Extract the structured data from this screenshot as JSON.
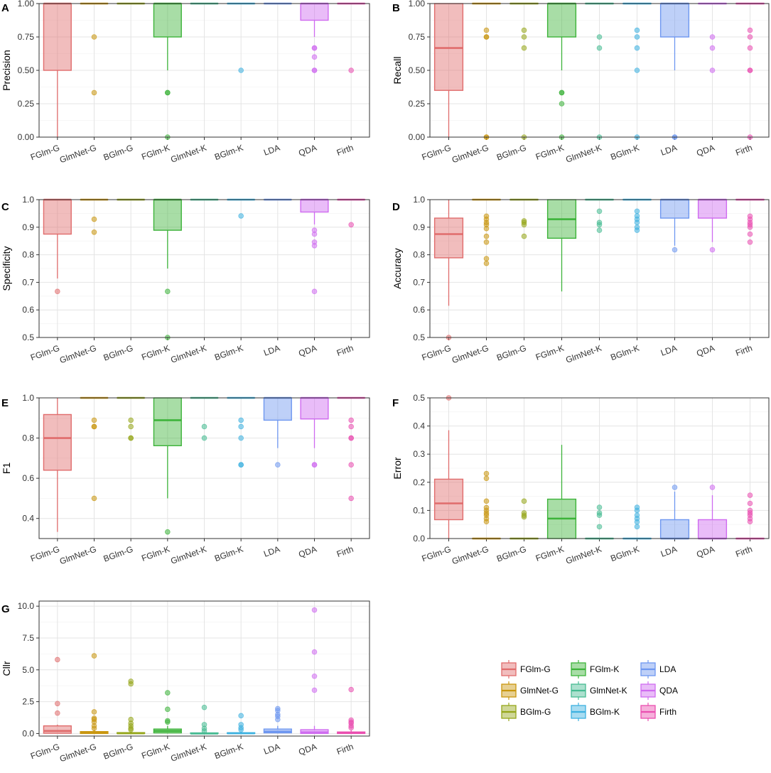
{
  "colors": {
    "FGlm-G": "#E06C6C",
    "GlmNet-G": "#C9960E",
    "BGlm-G": "#95A61A",
    "FGlm-K": "#3DB33A",
    "GlmNet-K": "#46BB92",
    "BGlm-K": "#3DB1E0",
    "LDA": "#6E97F0",
    "QDA": "#CF6BF0",
    "Firth": "#EA4FB0"
  },
  "legend": {
    "entries": [
      "FGlm-G",
      "FGlm-K",
      "LDA",
      "GlmNet-G",
      "GlmNet-K",
      "QDA",
      "BGlm-G",
      "BGlm-K",
      "Firth"
    ]
  },
  "chart_data": [
    {
      "type": "boxplot",
      "panel": "A",
      "ylabel": "Precision",
      "ylim": [
        0,
        1
      ],
      "yticks": [
        "0.00",
        "0.25",
        "0.50",
        "0.75",
        "1.00"
      ],
      "categories": [
        "FGlm-G",
        "GlmNet-G",
        "BGlm-G",
        "FGlm-K",
        "GlmNet-K",
        "BGlm-K",
        "LDA",
        "QDA",
        "Firth"
      ],
      "boxes": [
        {
          "q1": 0.5,
          "med": 1.0,
          "q3": 1.0,
          "lo": 0.0,
          "hi": 1.0,
          "out": []
        },
        {
          "q1": 1.0,
          "med": 1.0,
          "q3": 1.0,
          "lo": 1.0,
          "hi": 1.0,
          "out": [
            0.75,
            0.333
          ]
        },
        {
          "q1": 1.0,
          "med": 1.0,
          "q3": 1.0,
          "lo": 1.0,
          "hi": 1.0,
          "out": []
        },
        {
          "q1": 0.75,
          "med": 1.0,
          "q3": 1.0,
          "lo": 0.5,
          "hi": 1.0,
          "out": [
            0.333,
            0.333,
            0.0
          ]
        },
        {
          "q1": 1.0,
          "med": 1.0,
          "q3": 1.0,
          "lo": 1.0,
          "hi": 1.0,
          "out": []
        },
        {
          "q1": 1.0,
          "med": 1.0,
          "q3": 1.0,
          "lo": 1.0,
          "hi": 1.0,
          "out": [
            0.5
          ]
        },
        {
          "q1": 1.0,
          "med": 1.0,
          "q3": 1.0,
          "lo": 1.0,
          "hi": 1.0,
          "out": []
        },
        {
          "q1": 0.875,
          "med": 1.0,
          "q3": 1.0,
          "lo": 0.75,
          "hi": 1.0,
          "out": [
            0.667,
            0.667,
            0.6,
            0.5,
            0.5
          ]
        },
        {
          "q1": 1.0,
          "med": 1.0,
          "q3": 1.0,
          "lo": 1.0,
          "hi": 1.0,
          "out": [
            0.5
          ]
        }
      ]
    },
    {
      "type": "boxplot",
      "panel": "B",
      "ylabel": "Recall",
      "ylim": [
        0,
        1
      ],
      "yticks": [
        "0.00",
        "0.25",
        "0.50",
        "0.75",
        "1.00"
      ],
      "categories": [
        "FGlm-G",
        "GlmNet-G",
        "BGlm-G",
        "FGlm-K",
        "GlmNet-K",
        "BGlm-K",
        "LDA",
        "QDA",
        "Firth"
      ],
      "boxes": [
        {
          "q1": 0.35,
          "med": 0.667,
          "q3": 1.0,
          "lo": 0.0,
          "hi": 1.0,
          "out": []
        },
        {
          "q1": 1.0,
          "med": 1.0,
          "q3": 1.0,
          "lo": 1.0,
          "hi": 1.0,
          "out": [
            0.8,
            0.75,
            0.75,
            0.0,
            0.0
          ]
        },
        {
          "q1": 1.0,
          "med": 1.0,
          "q3": 1.0,
          "lo": 1.0,
          "hi": 1.0,
          "out": [
            0.8,
            0.75,
            0.667,
            0.0
          ]
        },
        {
          "q1": 0.75,
          "med": 1.0,
          "q3": 1.0,
          "lo": 0.5,
          "hi": 1.0,
          "out": [
            0.333,
            0.333,
            0.25,
            0.0
          ]
        },
        {
          "q1": 1.0,
          "med": 1.0,
          "q3": 1.0,
          "lo": 1.0,
          "hi": 1.0,
          "out": [
            0.75,
            0.667,
            0.0
          ]
        },
        {
          "q1": 1.0,
          "med": 1.0,
          "q3": 1.0,
          "lo": 1.0,
          "hi": 1.0,
          "out": [
            0.8,
            0.75,
            0.667,
            0.5,
            0.0
          ]
        },
        {
          "q1": 0.75,
          "med": 1.0,
          "q3": 1.0,
          "lo": 0.5,
          "hi": 1.0,
          "out": [
            0.0,
            0.0
          ]
        },
        {
          "q1": 1.0,
          "med": 1.0,
          "q3": 1.0,
          "lo": 1.0,
          "hi": 1.0,
          "out": [
            0.75,
            0.667,
            0.5
          ]
        },
        {
          "q1": 1.0,
          "med": 1.0,
          "q3": 1.0,
          "lo": 1.0,
          "hi": 1.0,
          "out": [
            0.8,
            0.75,
            0.667,
            0.5,
            0.5,
            0.0
          ]
        }
      ]
    },
    {
      "type": "boxplot",
      "panel": "C",
      "ylabel": "Specificity",
      "ylim": [
        0.5,
        1
      ],
      "yticks": [
        "0.5",
        "0.6",
        "0.7",
        "0.8",
        "0.9",
        "1.0"
      ],
      "categories": [
        "FGlm-G",
        "GlmNet-G",
        "BGlm-G",
        "FGlm-K",
        "GlmNet-K",
        "BGlm-K",
        "LDA",
        "QDA",
        "Firth"
      ],
      "boxes": [
        {
          "q1": 0.875,
          "med": 1.0,
          "q3": 1.0,
          "lo": 0.714,
          "hi": 1.0,
          "out": [
            0.667
          ]
        },
        {
          "q1": 1.0,
          "med": 1.0,
          "q3": 1.0,
          "lo": 1.0,
          "hi": 1.0,
          "out": [
            0.929,
            0.882
          ]
        },
        {
          "q1": 1.0,
          "med": 1.0,
          "q3": 1.0,
          "lo": 1.0,
          "hi": 1.0,
          "out": []
        },
        {
          "q1": 0.889,
          "med": 1.0,
          "q3": 1.0,
          "lo": 0.75,
          "hi": 1.0,
          "out": [
            0.667,
            0.5
          ]
        },
        {
          "q1": 1.0,
          "med": 1.0,
          "q3": 1.0,
          "lo": 1.0,
          "hi": 1.0,
          "out": []
        },
        {
          "q1": 1.0,
          "med": 1.0,
          "q3": 1.0,
          "lo": 1.0,
          "hi": 1.0,
          "out": [
            0.941
          ]
        },
        {
          "q1": 1.0,
          "med": 1.0,
          "q3": 1.0,
          "lo": 1.0,
          "hi": 1.0,
          "out": []
        },
        {
          "q1": 0.955,
          "med": 1.0,
          "q3": 1.0,
          "lo": 0.91,
          "hi": 1.0,
          "out": [
            0.889,
            0.875,
            0.846,
            0.833,
            0.667
          ]
        },
        {
          "q1": 1.0,
          "med": 1.0,
          "q3": 1.0,
          "lo": 1.0,
          "hi": 1.0,
          "out": [
            0.909
          ]
        }
      ]
    },
    {
      "type": "boxplot",
      "panel": "D",
      "ylabel": "Accuracy",
      "ylim": [
        0.5,
        1
      ],
      "yticks": [
        "0.5",
        "0.6",
        "0.7",
        "0.8",
        "0.9",
        "1.0"
      ],
      "categories": [
        "FGlm-G",
        "GlmNet-G",
        "BGlm-G",
        "FGlm-K",
        "GlmNet-K",
        "BGlm-K",
        "LDA",
        "QDA",
        "Firth"
      ],
      "boxes": [
        {
          "q1": 0.789,
          "med": 0.875,
          "q3": 0.933,
          "lo": 0.615,
          "hi": 1.0,
          "out": [
            0.5
          ]
        },
        {
          "q1": 1.0,
          "med": 1.0,
          "q3": 1.0,
          "lo": 1.0,
          "hi": 1.0,
          "out": [
            0.94,
            0.929,
            0.917,
            0.909,
            0.895,
            0.867,
            0.846,
            0.786,
            0.769
          ]
        },
        {
          "q1": 1.0,
          "med": 1.0,
          "q3": 1.0,
          "lo": 1.0,
          "hi": 1.0,
          "out": [
            0.923,
            0.917,
            0.909,
            0.867
          ]
        },
        {
          "q1": 0.86,
          "med": 0.929,
          "q3": 1.0,
          "lo": 0.667,
          "hi": 1.0,
          "out": []
        },
        {
          "q1": 1.0,
          "med": 1.0,
          "q3": 1.0,
          "lo": 1.0,
          "hi": 1.0,
          "out": [
            0.958,
            0.917,
            0.909,
            0.889
          ]
        },
        {
          "q1": 1.0,
          "med": 1.0,
          "q3": 1.0,
          "lo": 1.0,
          "hi": 1.0,
          "out": [
            0.958,
            0.941,
            0.929,
            0.917,
            0.9,
            0.889
          ]
        },
        {
          "q1": 0.933,
          "med": 1.0,
          "q3": 1.0,
          "lo": 0.833,
          "hi": 1.0,
          "out": [
            0.818
          ]
        },
        {
          "q1": 0.933,
          "med": 1.0,
          "q3": 1.0,
          "lo": 0.846,
          "hi": 1.0,
          "out": [
            0.818
          ]
        },
        {
          "q1": 1.0,
          "med": 1.0,
          "q3": 1.0,
          "lo": 1.0,
          "hi": 1.0,
          "out": [
            0.94,
            0.929,
            0.917,
            0.909,
            0.9,
            0.875,
            0.846
          ]
        }
      ]
    },
    {
      "type": "boxplot",
      "panel": "E",
      "ylabel": "F1",
      "ylim": [
        0.3,
        1
      ],
      "yticks": [
        "0.4",
        "0.6",
        "0.8",
        "1.0"
      ],
      "categories": [
        "FGlm-G",
        "GlmNet-G",
        "BGlm-G",
        "FGlm-K",
        "GlmNet-K",
        "BGlm-K",
        "LDA",
        "QDA",
        "Firth"
      ],
      "boxes": [
        {
          "q1": 0.64,
          "med": 0.8,
          "q3": 0.917,
          "lo": 0.333,
          "hi": 1.0,
          "out": []
        },
        {
          "q1": 1.0,
          "med": 1.0,
          "q3": 1.0,
          "lo": 1.0,
          "hi": 1.0,
          "out": [
            0.889,
            0.857,
            0.857,
            0.5
          ]
        },
        {
          "q1": 1.0,
          "med": 1.0,
          "q3": 1.0,
          "lo": 1.0,
          "hi": 1.0,
          "out": [
            0.889,
            0.857,
            0.8,
            0.8
          ]
        },
        {
          "q1": 0.762,
          "med": 0.889,
          "q3": 1.0,
          "lo": 0.5,
          "hi": 1.0,
          "out": [
            0.333
          ]
        },
        {
          "q1": 1.0,
          "med": 1.0,
          "q3": 1.0,
          "lo": 1.0,
          "hi": 1.0,
          "out": [
            0.857,
            0.8
          ]
        },
        {
          "q1": 1.0,
          "med": 1.0,
          "q3": 1.0,
          "lo": 1.0,
          "hi": 1.0,
          "out": [
            0.889,
            0.857,
            0.8,
            0.667,
            0.667
          ]
        },
        {
          "q1": 0.889,
          "med": 1.0,
          "q3": 1.0,
          "lo": 0.75,
          "hi": 1.0,
          "out": [
            0.667
          ]
        },
        {
          "q1": 0.895,
          "med": 1.0,
          "q3": 1.0,
          "lo": 0.75,
          "hi": 1.0,
          "out": [
            0.667,
            0.667
          ]
        },
        {
          "q1": 1.0,
          "med": 1.0,
          "q3": 1.0,
          "lo": 1.0,
          "hi": 1.0,
          "out": [
            0.889,
            0.857,
            0.8,
            0.8,
            0.667,
            0.5
          ]
        }
      ]
    },
    {
      "type": "boxplot",
      "panel": "F",
      "ylabel": "Error",
      "ylim": [
        0,
        0.5
      ],
      "yticks": [
        "0.0",
        "0.1",
        "0.2",
        "0.3",
        "0.4",
        "0.5"
      ],
      "categories": [
        "FGlm-G",
        "GlmNet-G",
        "BGlm-G",
        "FGlm-K",
        "GlmNet-K",
        "BGlm-K",
        "LDA",
        "QDA",
        "Firth"
      ],
      "boxes": [
        {
          "q1": 0.067,
          "med": 0.125,
          "q3": 0.211,
          "lo": 0.0,
          "hi": 0.385,
          "out": [
            0.5
          ]
        },
        {
          "q1": 0.0,
          "med": 0.0,
          "q3": 0.0,
          "lo": 0.0,
          "hi": 0.0,
          "out": [
            0.231,
            0.214,
            0.133,
            0.11,
            0.1,
            0.09,
            0.083,
            0.071,
            0.06
          ]
        },
        {
          "q1": 0.0,
          "med": 0.0,
          "q3": 0.0,
          "lo": 0.0,
          "hi": 0.0,
          "out": [
            0.133,
            0.091,
            0.083,
            0.077
          ]
        },
        {
          "q1": 0.0,
          "med": 0.071,
          "q3": 0.14,
          "lo": 0.0,
          "hi": 0.333,
          "out": []
        },
        {
          "q1": 0.0,
          "med": 0.0,
          "q3": 0.0,
          "lo": 0.0,
          "hi": 0.0,
          "out": [
            0.111,
            0.091,
            0.083,
            0.042
          ]
        },
        {
          "q1": 0.0,
          "med": 0.0,
          "q3": 0.0,
          "lo": 0.0,
          "hi": 0.0,
          "out": [
            0.111,
            0.1,
            0.083,
            0.071,
            0.059,
            0.042
          ]
        },
        {
          "q1": 0.0,
          "med": 0.0,
          "q3": 0.067,
          "lo": 0.0,
          "hi": 0.167,
          "out": [
            0.182
          ]
        },
        {
          "q1": 0.0,
          "med": 0.0,
          "q3": 0.067,
          "lo": 0.0,
          "hi": 0.154,
          "out": [
            0.182
          ]
        },
        {
          "q1": 0.0,
          "med": 0.0,
          "q3": 0.0,
          "lo": 0.0,
          "hi": 0.0,
          "out": [
            0.154,
            0.125,
            0.1,
            0.091,
            0.083,
            0.071,
            0.06
          ]
        }
      ]
    },
    {
      "type": "boxplot",
      "panel": "G",
      "ylabel": "Cllr",
      "ylim": [
        -0.2,
        10.4
      ],
      "yticks": [
        "0.0",
        "2.5",
        "5.0",
        "7.5",
        "10.0"
      ],
      "categories": [
        "FGlm-G",
        "GlmNet-G",
        "BGlm-G",
        "FGlm-K",
        "GlmNet-K",
        "BGlm-K",
        "LDA",
        "QDA",
        "Firth"
      ],
      "boxes": [
        {
          "q1": 0.02,
          "med": 0.2,
          "q3": 0.6,
          "lo": 0.0,
          "hi": 0.7,
          "out": [
            5.8,
            2.35,
            1.6
          ]
        },
        {
          "q1": 0.0,
          "med": 0.05,
          "q3": 0.15,
          "lo": 0.0,
          "hi": 0.3,
          "out": [
            6.1,
            1.7,
            1.2,
            1.1,
            0.9,
            0.6,
            0.4
          ]
        },
        {
          "q1": 0.0,
          "med": 0.02,
          "q3": 0.07,
          "lo": 0.0,
          "hi": 0.15,
          "out": [
            4.1,
            3.9,
            1.1,
            0.8,
            0.6,
            0.4,
            0.3
          ]
        },
        {
          "q1": 0.05,
          "med": 0.2,
          "q3": 0.35,
          "lo": 0.0,
          "hi": 0.6,
          "out": [
            3.2,
            1.9,
            1.0,
            0.9
          ]
        },
        {
          "q1": 0.0,
          "med": 0.0,
          "q3": 0.05,
          "lo": 0.0,
          "hi": 0.1,
          "out": [
            2.05,
            0.7,
            0.4,
            0.2
          ]
        },
        {
          "q1": 0.0,
          "med": 0.02,
          "q3": 0.06,
          "lo": 0.0,
          "hi": 0.12,
          "out": [
            1.4,
            0.7,
            0.45,
            0.3
          ]
        },
        {
          "q1": 0.05,
          "med": 0.15,
          "q3": 0.35,
          "lo": 0.0,
          "hi": 0.6,
          "out": [
            1.95,
            1.8,
            1.5,
            1.35,
            1.1
          ]
        },
        {
          "q1": 0.0,
          "med": 0.1,
          "q3": 0.3,
          "lo": 0.0,
          "hi": 0.6,
          "out": [
            9.7,
            6.4,
            4.5,
            3.4
          ]
        },
        {
          "q1": 0.0,
          "med": 0.05,
          "q3": 0.12,
          "lo": 0.0,
          "hi": 0.25,
          "out": [
            3.45,
            1.05,
            0.9,
            0.8,
            0.6,
            0.45
          ]
        }
      ]
    }
  ]
}
